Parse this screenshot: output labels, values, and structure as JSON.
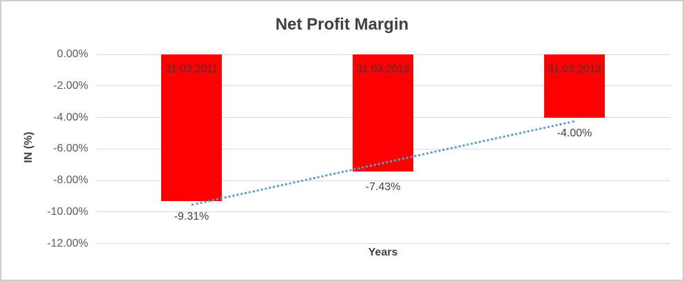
{
  "window": {
    "background": "#ffffff",
    "border_color": "#cccccc"
  },
  "chart_data": {
    "type": "bar",
    "title": "Net Profit Margin",
    "xlabel": "Years",
    "ylabel": "IN (%)",
    "categories": [
      "31.03.2011",
      "31.03.2012",
      "31.03.2013"
    ],
    "values": [
      -9.31,
      -7.43,
      -4.0
    ],
    "value_labels": [
      "-9.31%",
      "-7.43%",
      "-4.00%"
    ],
    "ylim": [
      -12,
      0
    ],
    "ytick_step": 2,
    "ytick_labels": [
      "0.00%",
      "-2.00%",
      "-4.00%",
      "-6.00%",
      "-8.00%",
      "-10.00%",
      "-12.00%"
    ],
    "grid": true,
    "legend": "none",
    "bar_color": "#ff0000",
    "gridline_color": "#d9d9d9",
    "title_color": "#404040",
    "label_color": "#404040",
    "trendline": {
      "fit": "linear",
      "style": "dotted",
      "color": "#5b9bd5"
    }
  }
}
